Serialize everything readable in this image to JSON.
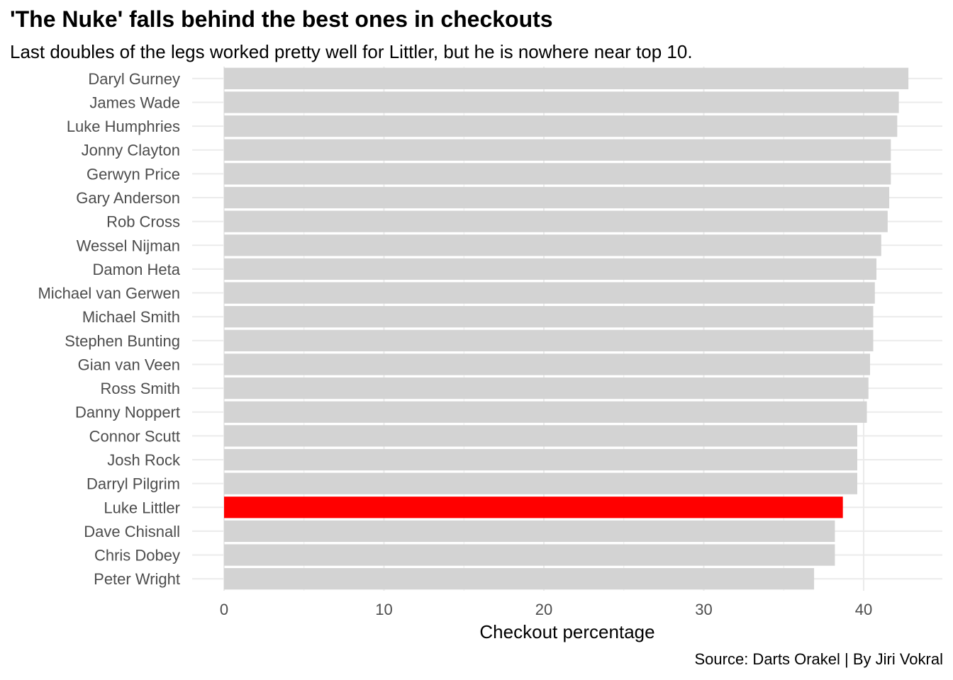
{
  "title": "'The Nuke' falls behind the best ones in checkouts",
  "subtitle": "Last doubles of the legs worked pretty well for Littler, but he is nowhere near top 10.",
  "caption": "Source: Darts Orakel | By Jiri Vokral",
  "colors": {
    "default_bar": "#d3d3d3",
    "highlight_bar": "#ff0000",
    "grid": "#ebebeb"
  },
  "chart_data": {
    "type": "bar",
    "orientation": "horizontal",
    "title": "'The Nuke' falls behind the best ones in checkouts",
    "subtitle": "Last doubles of the legs worked pretty well for Littler, but he is nowhere near top 10.",
    "xlabel": "Checkout percentage",
    "ylabel": "",
    "xlim": [
      0,
      45
    ],
    "x_ticks": [
      0,
      10,
      20,
      30,
      40
    ],
    "grid": true,
    "legend": "none",
    "highlight": "Luke Littler",
    "categories": [
      "Daryl Gurney",
      "James Wade",
      "Luke Humphries",
      "Jonny Clayton",
      "Gerwyn Price",
      "Gary Anderson",
      "Rob Cross",
      "Wessel Nijman",
      "Damon Heta",
      "Michael van Gerwen",
      "Michael Smith",
      "Stephen Bunting",
      "Gian van Veen",
      "Ross Smith",
      "Danny Noppert",
      "Connor Scutt",
      "Josh Rock",
      "Darryl Pilgrim",
      "Luke Littler",
      "Dave Chisnall",
      "Chris Dobey",
      "Peter Wright"
    ],
    "values": [
      42.8,
      42.2,
      42.1,
      41.7,
      41.7,
      41.6,
      41.5,
      41.1,
      40.8,
      40.7,
      40.6,
      40.6,
      40.4,
      40.3,
      40.2,
      39.6,
      39.6,
      39.6,
      38.7,
      38.2,
      38.2,
      36.9
    ]
  }
}
